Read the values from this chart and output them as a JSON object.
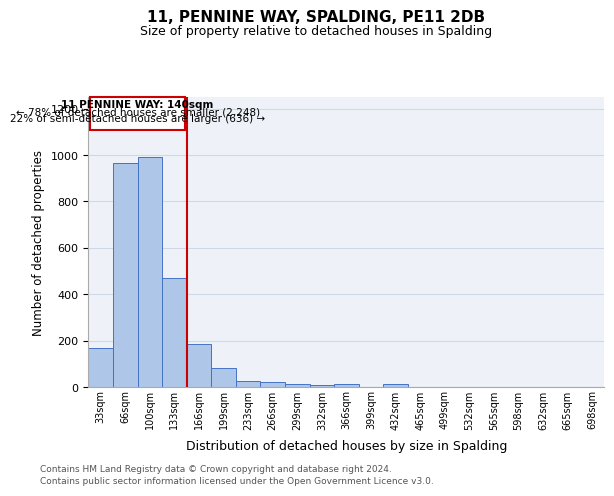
{
  "title": "11, PENNINE WAY, SPALDING, PE11 2DB",
  "subtitle": "Size of property relative to detached houses in Spalding",
  "xlabel": "Distribution of detached houses by size in Spalding",
  "ylabel": "Number of detached properties",
  "footnote1": "Contains HM Land Registry data © Crown copyright and database right 2024.",
  "footnote2": "Contains public sector information licensed under the Open Government Licence v3.0.",
  "annotation_line1": "11 PENNINE WAY: 140sqm",
  "annotation_line2": "← 78% of detached houses are smaller (2,248)",
  "annotation_line3": "22% of semi-detached houses are larger (636) →",
  "bar_labels": [
    "33sqm",
    "66sqm",
    "100sqm",
    "133sqm",
    "166sqm",
    "199sqm",
    "233sqm",
    "266sqm",
    "299sqm",
    "332sqm",
    "366sqm",
    "399sqm",
    "432sqm",
    "465sqm",
    "499sqm",
    "532sqm",
    "565sqm",
    "598sqm",
    "632sqm",
    "665sqm",
    "698sqm"
  ],
  "bar_values": [
    170,
    965,
    990,
    468,
    185,
    80,
    28,
    20,
    15,
    10,
    12,
    0,
    12,
    0,
    0,
    0,
    0,
    0,
    0,
    0,
    0
  ],
  "bar_color": "#aec6e8",
  "bar_edge_color": "#4472c4",
  "grid_color": "#d0d8e8",
  "bg_color": "#eef2f8",
  "ylim": [
    0,
    1250
  ],
  "yticks": [
    0,
    200,
    400,
    600,
    800,
    1000,
    1200
  ],
  "box_color": "#cc0000",
  "vline_color": "#cc0000",
  "title_fontsize": 11,
  "subtitle_fontsize": 9,
  "ylabel_fontsize": 8.5,
  "xlabel_fontsize": 9,
  "tick_fontsize": 8,
  "xtick_fontsize": 7,
  "annot_fontsize": 7.5,
  "footnote_fontsize": 6.5
}
